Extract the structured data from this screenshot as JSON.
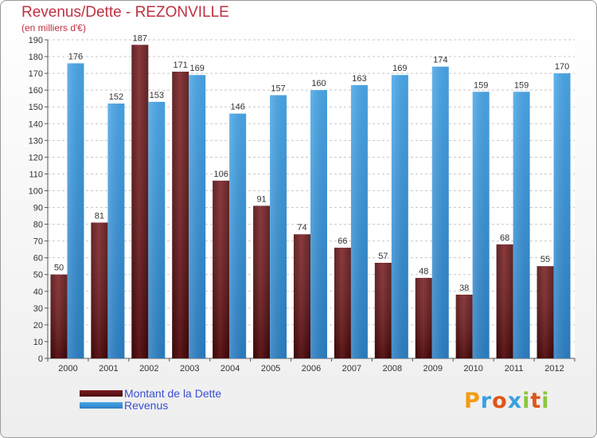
{
  "header": {
    "title": "Revenus/Dette - REZONVILLE",
    "subtitle": "(en milliers d'€)"
  },
  "logo": {
    "text": "Proxiti"
  },
  "colors": {
    "debt": "#7a1e22",
    "debt_dark": "#4a0808",
    "revenue": "#4aa7e8",
    "revenue_dark": "#2b7fc4",
    "text": "#333333",
    "title": "#c03040",
    "legend_text": "#3a4fd0"
  },
  "chart_data": {
    "type": "bar",
    "title": "Revenus/Dette - REZONVILLE",
    "subtitle": "(en milliers d'€)",
    "categories": [
      "2000",
      "2001",
      "2002",
      "2003",
      "2004",
      "2005",
      "2006",
      "2007",
      "2008",
      "2009",
      "2010",
      "2011",
      "2012"
    ],
    "series": [
      {
        "name": "Montant de la Dette",
        "values": [
          50,
          81,
          187,
          171,
          106,
          91,
          74,
          66,
          57,
          48,
          38,
          68,
          55
        ]
      },
      {
        "name": "Revenus",
        "values": [
          176,
          152,
          153,
          169,
          146,
          157,
          160,
          163,
          169,
          174,
          159,
          159,
          170
        ]
      }
    ],
    "ylim": [
      0,
      190
    ],
    "yticks": [
      0,
      10,
      20,
      30,
      40,
      50,
      60,
      70,
      80,
      90,
      100,
      110,
      120,
      130,
      140,
      150,
      160,
      170,
      180,
      190
    ],
    "grid": true,
    "legend_position": "bottom-left"
  }
}
